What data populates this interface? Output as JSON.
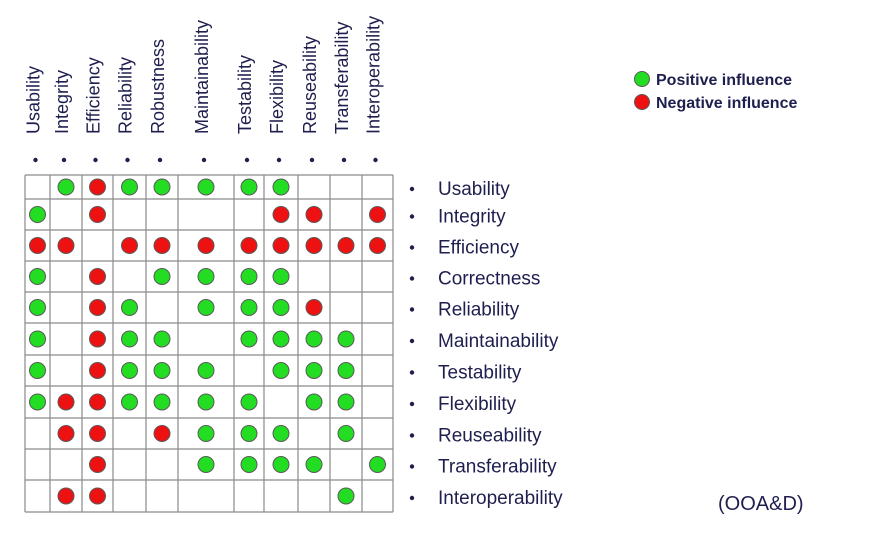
{
  "columns": [
    "Usability",
    "Integrity",
    "Efficiency",
    "Reliability",
    "Robustness",
    "Maintainability",
    "Testability",
    "Flexibility",
    "Reuseability",
    "Transferability",
    "Interoperability"
  ],
  "rows": [
    "Usability",
    "Integrity",
    "Efficiency",
    "Correctness",
    "Reliability",
    "Maintainability",
    "Testability",
    "Flexibility",
    "Reuseability",
    "Transferability",
    "Interoperability"
  ],
  "legend": {
    "positive": {
      "label": "Positive influence",
      "color": "#22dd22"
    },
    "negative": {
      "label": "Negative influence",
      "color": "#ee1111"
    }
  },
  "source": "(OOA&D)",
  "matrix": [
    [
      "",
      "P",
      "N",
      "P",
      "P",
      "P",
      "P",
      "P",
      "",
      "",
      ""
    ],
    [
      "P",
      "",
      "N",
      "",
      "",
      "",
      "",
      "N",
      "N",
      "",
      "N"
    ],
    [
      "N",
      "N",
      "",
      "N",
      "N",
      "N",
      "N",
      "N",
      "N",
      "N",
      "N"
    ],
    [
      "P",
      "",
      "N",
      "",
      "P",
      "P",
      "P",
      "P",
      "",
      "",
      ""
    ],
    [
      "P",
      "",
      "N",
      "P",
      "",
      "P",
      "P",
      "P",
      "N",
      "",
      ""
    ],
    [
      "P",
      "",
      "N",
      "P",
      "P",
      "",
      "P",
      "P",
      "P",
      "P",
      ""
    ],
    [
      "P",
      "",
      "N",
      "P",
      "P",
      "P",
      "",
      "P",
      "P",
      "P",
      ""
    ],
    [
      "P",
      "N",
      "N",
      "P",
      "P",
      "P",
      "P",
      "",
      "P",
      "P",
      ""
    ],
    [
      "",
      "N",
      "N",
      "",
      "N",
      "P",
      "P",
      "P",
      "",
      "P",
      ""
    ],
    [
      "",
      "",
      "N",
      "",
      "",
      "P",
      "P",
      "P",
      "P",
      "",
      "P"
    ],
    [
      "",
      "N",
      "N",
      "",
      "",
      "",
      "",
      "",
      "",
      "P",
      ""
    ]
  ]
}
